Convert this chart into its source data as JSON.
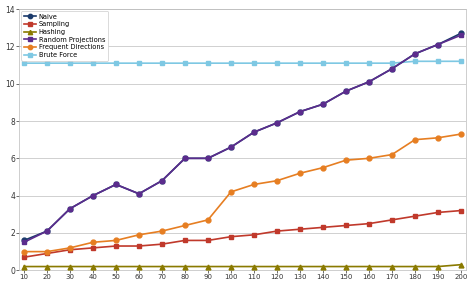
{
  "x": [
    10,
    20,
    30,
    40,
    50,
    60,
    70,
    80,
    90,
    100,
    110,
    120,
    130,
    140,
    150,
    160,
    170,
    180,
    190,
    200
  ],
  "naive": [
    1.6,
    2.1,
    3.3,
    4.0,
    4.6,
    4.1,
    4.8,
    6.0,
    6.0,
    6.6,
    7.4,
    7.9,
    8.5,
    8.9,
    9.6,
    10.1,
    10.8,
    11.6,
    12.1,
    12.7
  ],
  "sampling": [
    0.7,
    0.9,
    1.1,
    1.2,
    1.3,
    1.3,
    1.4,
    1.6,
    1.6,
    1.8,
    1.9,
    2.1,
    2.2,
    2.3,
    2.4,
    2.5,
    2.7,
    2.9,
    3.1,
    3.2
  ],
  "hashing": [
    0.2,
    0.2,
    0.2,
    0.2,
    0.2,
    0.2,
    0.2,
    0.2,
    0.2,
    0.2,
    0.2,
    0.2,
    0.2,
    0.2,
    0.2,
    0.2,
    0.2,
    0.2,
    0.2,
    0.3
  ],
  "random_projections": [
    1.5,
    2.1,
    3.3,
    4.0,
    4.6,
    4.1,
    4.8,
    6.0,
    6.0,
    6.6,
    7.4,
    7.9,
    8.5,
    8.9,
    9.6,
    10.1,
    10.8,
    11.6,
    12.1,
    12.6
  ],
  "frequent_directions": [
    1.0,
    1.0,
    1.2,
    1.5,
    1.6,
    1.9,
    2.1,
    2.4,
    2.7,
    4.2,
    4.6,
    4.8,
    5.2,
    5.5,
    5.9,
    6.0,
    6.2,
    7.0,
    7.1,
    7.3
  ],
  "brute_force": [
    11.1,
    11.1,
    11.1,
    11.1,
    11.1,
    11.1,
    11.1,
    11.1,
    11.1,
    11.1,
    11.1,
    11.1,
    11.1,
    11.1,
    11.1,
    11.1,
    11.1,
    11.2,
    11.2,
    11.2
  ],
  "naive_color": "#1a3a6b",
  "sampling_color": "#c0392b",
  "hashing_color": "#8a7a00",
  "random_projections_color": "#5b2c8d",
  "frequent_directions_color": "#e67e22",
  "brute_force_color": "#7ec8e3",
  "ylim": [
    0,
    14
  ],
  "yticks": [
    0,
    2,
    4,
    6,
    8,
    10,
    12,
    14
  ],
  "xtick_labels": [
    "10",
    "20",
    "30",
    "40",
    "50",
    "60",
    "70",
    "80",
    "90",
    "100",
    "110",
    "120",
    "130",
    "140",
    "150",
    "160",
    "170",
    "180",
    "190",
    "200"
  ],
  "legend_labels": [
    "Naive",
    "Sampling",
    "Hashing",
    "Random Projections",
    "Frequent Directions",
    "Brute Force"
  ],
  "bg_color": "#ffffff",
  "grid_color": "#d0d0d0"
}
